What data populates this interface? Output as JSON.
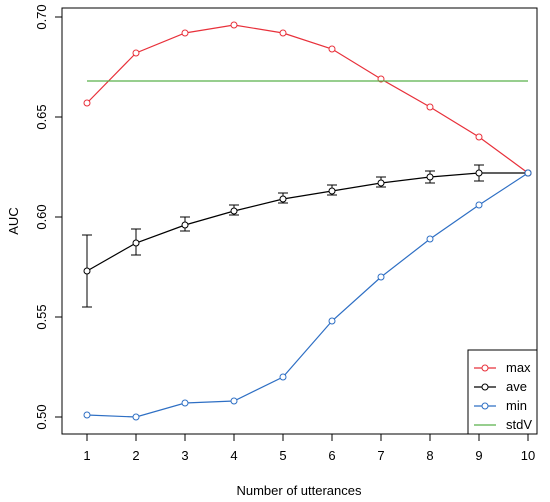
{
  "chart_data": {
    "type": "line",
    "title": "",
    "xlabel": "Number of utterances",
    "ylabel": "AUC",
    "x": [
      1,
      2,
      3,
      4,
      5,
      6,
      7,
      8,
      9,
      10
    ],
    "xlim": [
      1,
      10
    ],
    "ylim": [
      0.4975,
      0.7025
    ],
    "x_ticks": [
      1,
      2,
      3,
      4,
      5,
      6,
      7,
      8,
      9,
      10
    ],
    "y_ticks": [
      0.5,
      0.55,
      0.6,
      0.65,
      0.7
    ],
    "y_tick_labels": [
      "0.50",
      "0.55",
      "0.60",
      "0.65",
      "0.70"
    ],
    "grid": false,
    "legend_position": "bottom-right",
    "series": [
      {
        "name": "max",
        "color": "#e8303a",
        "marker": "circle",
        "values": [
          0.657,
          0.682,
          0.692,
          0.696,
          0.692,
          0.684,
          0.669,
          0.655,
          0.64,
          0.622
        ]
      },
      {
        "name": "ave",
        "color": "#000000",
        "marker": "circle",
        "values": [
          0.573,
          0.587,
          0.596,
          0.603,
          0.609,
          0.613,
          0.617,
          0.62,
          0.622,
          0.622
        ],
        "error_low": [
          0.555,
          0.581,
          0.593,
          0.601,
          0.607,
          0.611,
          0.615,
          0.617,
          0.618,
          0.622
        ],
        "error_high": [
          0.591,
          0.594,
          0.6,
          0.606,
          0.612,
          0.616,
          0.62,
          0.623,
          0.626,
          0.622
        ]
      },
      {
        "name": "min",
        "color": "#2e6fc4",
        "marker": "circle",
        "values": [
          0.501,
          0.5,
          0.507,
          0.508,
          0.52,
          0.548,
          0.57,
          0.589,
          0.606,
          0.622
        ]
      },
      {
        "name": "stdV",
        "color": "#59b04a",
        "marker": "none",
        "values": [
          0.668,
          0.668,
          0.668,
          0.668,
          0.668,
          0.668,
          0.668,
          0.668,
          0.668,
          0.668
        ]
      }
    ]
  }
}
